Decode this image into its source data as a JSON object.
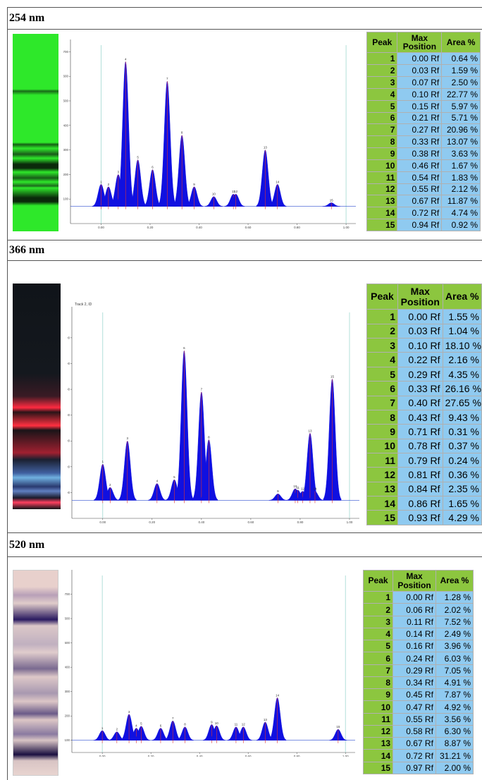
{
  "sections": [
    {
      "title": "254 nm",
      "table": {
        "headers": [
          "Peak",
          "Max Position",
          "Area %"
        ],
        "rows": [
          [
            "1",
            "0.00 Rf",
            "0.64 %"
          ],
          [
            "2",
            "0.03 Rf",
            "1.59 %"
          ],
          [
            "3",
            "0.07 Rf",
            "2.50 %"
          ],
          [
            "4",
            "0.10 Rf",
            "22.77 %"
          ],
          [
            "5",
            "0.15 Rf",
            "5.97 %"
          ],
          [
            "6",
            "0.21 Rf",
            "5.71 %"
          ],
          [
            "7",
            "0.27 Rf",
            "20.96 %"
          ],
          [
            "8",
            "0.33 Rf",
            "13.07 %"
          ],
          [
            "9",
            "0.38 Rf",
            "3.63 %"
          ],
          [
            "10",
            "0.46 Rf",
            "1.67 %"
          ],
          [
            "11",
            "0.54 Rf",
            "1.83 %"
          ],
          [
            "12",
            "0.55 Rf",
            "2.12 %"
          ],
          [
            "13",
            "0.67 Rf",
            "11.87 %"
          ],
          [
            "14",
            "0.72 Rf",
            "4.74 %"
          ],
          [
            "15",
            "0.94 Rf",
            "0.92 %"
          ]
        ]
      },
      "densitogram": {
        "xlim": [
          -0.125,
          1.04
        ],
        "ylim": [
          0,
          750
        ],
        "xticks": [
          {
            "value": 0,
            "label": "0.00"
          },
          {
            "value": 0.2,
            "label": "0.20"
          },
          {
            "value": 0.4,
            "label": "0.40"
          },
          {
            "value": 0.6,
            "label": "0.60"
          },
          {
            "value": 0.8,
            "label": "0.80"
          },
          {
            "value": 1,
            "label": "1.00"
          }
        ],
        "yticks": [
          100,
          200,
          300,
          400,
          500,
          600,
          700
        ],
        "baseline": 70,
        "peak_heights": [
          160,
          150,
          200,
          660,
          260,
          220,
          580,
          360,
          150,
          110,
          120,
          120,
          300,
          160,
          85
        ]
      }
    },
    {
      "title": "366 nm",
      "table": {
        "headers": [
          "Peak",
          "Max Position",
          "Area %"
        ],
        "rows": [
          [
            "1",
            "0.00 Rf",
            "1.55 %"
          ],
          [
            "2",
            "0.03 Rf",
            "1.04 %"
          ],
          [
            "3",
            "0.10 Rf",
            "18.10 %"
          ],
          [
            "4",
            "0.22 Rf",
            "2.16 %"
          ],
          [
            "5",
            "0.29 Rf",
            "4.35 %"
          ],
          [
            "6",
            "0.33 Rf",
            "26.16 %"
          ],
          [
            "7",
            "0.40 Rf",
            "27.65 %"
          ],
          [
            "8",
            "0.43 Rf",
            "9.43 %"
          ],
          [
            "9",
            "0.71 Rf",
            "0.31 %"
          ],
          [
            "10",
            "0.78 Rf",
            "0.37 %"
          ],
          [
            "11",
            "0.79 Rf",
            "0.24 %"
          ],
          [
            "12",
            "0.81 Rf",
            "0.36 %"
          ],
          [
            "13",
            "0.84 Rf",
            "2.35 %"
          ],
          [
            "14",
            "0.86 Rf",
            "1.65 %"
          ],
          [
            "15",
            "0.93 Rf",
            "4.29 %"
          ]
        ]
      },
      "densitogram": {
        "title": "Track 2, ID",
        "xlim": [
          -0.125,
          1.04
        ],
        "ylim": [
          0,
          820
        ],
        "xticks": [
          {
            "value": 0,
            "label": "0.00"
          },
          {
            "value": 0.2,
            "label": "0.20"
          },
          {
            "value": 0.4,
            "label": "0.40"
          },
          {
            "value": 0.6,
            "label": "0.60"
          },
          {
            "value": 0.8,
            "label": "0.80"
          },
          {
            "value": 1,
            "label": "1.00"
          }
        ],
        "yticks": [
          100,
          200,
          300,
          400,
          500,
          600,
          700
        ],
        "baseline": 70,
        "peak_heights": [
          210,
          120,
          300,
          135,
          150,
          650,
          490,
          305,
          95,
          115,
          110,
          105,
          330,
          105,
          540
        ]
      }
    },
    {
      "title": "520 nm",
      "table": {
        "headers": [
          "Peak",
          "Max Position",
          "Area %"
        ],
        "rows": [
          [
            "1",
            "0.00 Rf",
            "1.28 %"
          ],
          [
            "2",
            "0.06 Rf",
            "2.02 %"
          ],
          [
            "3",
            "0.11 Rf",
            "7.52 %"
          ],
          [
            "4",
            "0.14 Rf",
            "2.49 %"
          ],
          [
            "5",
            "0.16 Rf",
            "3.96 %"
          ],
          [
            "6",
            "0.24 Rf",
            "6.03 %"
          ],
          [
            "7",
            "0.29 Rf",
            "7.05 %"
          ],
          [
            "8",
            "0.34 Rf",
            "4.91 %"
          ],
          [
            "9",
            "0.45 Rf",
            "7.87 %"
          ],
          [
            "10",
            "0.47 Rf",
            "4.92 %"
          ],
          [
            "11",
            "0.55 Rf",
            "3.56 %"
          ],
          [
            "12",
            "0.58 Rf",
            "6.30 %"
          ],
          [
            "13",
            "0.67 Rf",
            "8.87 %"
          ],
          [
            "14",
            "0.72 Rf",
            "31.21 %"
          ],
          [
            "15",
            "0.97 Rf",
            "2.00 %"
          ]
        ]
      },
      "densitogram": {
        "xlim": [
          -0.125,
          1.04
        ],
        "ylim": [
          50,
          800
        ],
        "xticks": [
          {
            "value": 0,
            "label": "0.00"
          },
          {
            "value": 0.2,
            "label": "0.20"
          },
          {
            "value": 0.4,
            "label": "0.40"
          },
          {
            "value": 0.6,
            "label": "0.60"
          },
          {
            "value": 0.8,
            "label": "0.80"
          },
          {
            "value": 1,
            "label": "1.00"
          }
        ],
        "yticks": [
          100,
          200,
          300,
          400,
          500,
          600,
          700
        ],
        "baseline": 100,
        "peak_heights": [
          140,
          135,
          207,
          150,
          158,
          150,
          180,
          155,
          165,
          160,
          155,
          155,
          175,
          275,
          145
        ]
      }
    }
  ]
}
